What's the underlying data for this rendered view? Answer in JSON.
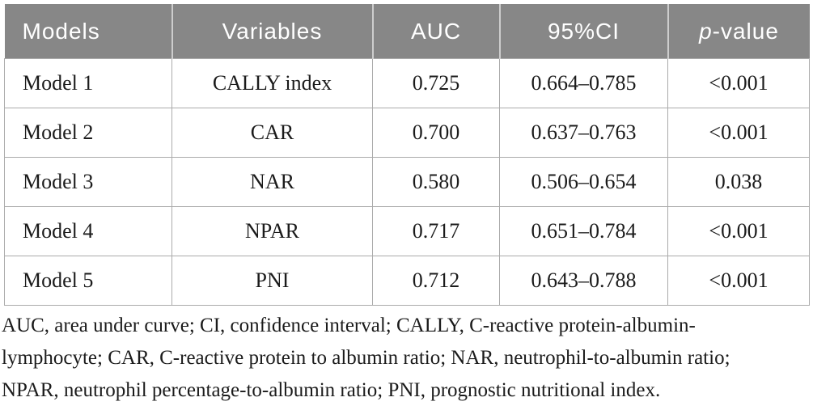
{
  "figure": {
    "kind": "journal-results-table"
  },
  "colors": {
    "background": "#ffffff",
    "header_bg": "#878787",
    "header_text": "#ffffff",
    "header_divider": "#cdcdcd",
    "body_border": "#ababab",
    "body_text": "#1b1b1b"
  },
  "table": {
    "headers": [
      "Models",
      "Variables",
      "AUC",
      "95%CI",
      "p-value"
    ],
    "p_header": {
      "italic": "p",
      "rest": "-value"
    },
    "rows": [
      [
        "Model 1",
        "CALLY index",
        "0.725",
        "0.664–0.785",
        "<0.001"
      ],
      [
        "Model 2",
        "CAR",
        "0.700",
        "0.637–0.763",
        "<0.001"
      ],
      [
        "Model 3",
        "NAR",
        "0.580",
        "0.506–0.654",
        "0.038"
      ],
      [
        "Model 4",
        "NPAR",
        "0.717",
        "0.651–0.784",
        "<0.001"
      ],
      [
        "Model 5",
        "PNI",
        "0.712",
        "0.643–0.788",
        "<0.001"
      ]
    ]
  },
  "footnote": {
    "lines": [
      "AUC, area under curve; CI, confidence interval; CALLY, C-reactive protein-albumin-",
      "lymphocyte; CAR, C-reactive protein to albumin ratio; NAR, neutrophil-to-albumin ratio;",
      "NPAR, neutrophil percentage-to-albumin ratio; PNI, prognostic nutritional index."
    ],
    "full_text": "AUC, area under curve; CI, confidence interval; CALLY, C-reactive protein-albumin-lymphocyte; CAR, C-reactive protein to albumin ratio; NAR, neutrophil-to-albumin ratio; NPAR, neutrophil percentage-to-albumin ratio; PNI, prognostic nutritional index."
  }
}
